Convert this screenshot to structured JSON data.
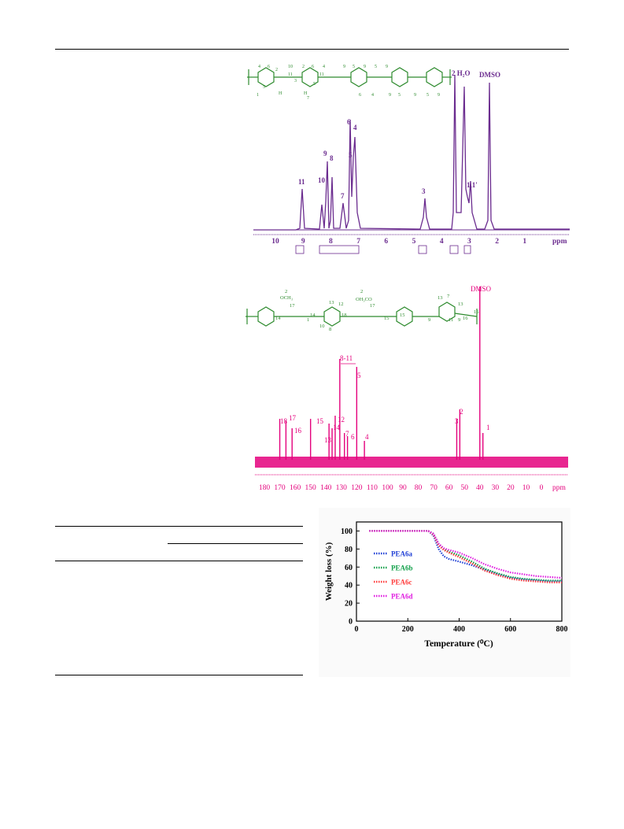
{
  "colors": {
    "hnmr": "#6b2c8f",
    "cnmr": "#e4007c",
    "structure": "#2e8b2e",
    "tga_series": [
      "#1f3fd6",
      "#12a04a",
      "#ff3b3b",
      "#e01ee0"
    ]
  },
  "hnmr": {
    "solvent_labels": [
      "2 H₂O",
      "DMSO"
    ],
    "peak_labels": [
      "11",
      "10",
      "9",
      "8",
      "7",
      "6",
      "5",
      "4",
      "3",
      "1,1′"
    ],
    "axis_ticks": [
      "10",
      "9",
      "8",
      "7",
      "6",
      "5",
      "4",
      "3",
      "2",
      "1"
    ],
    "axis_unit": "ppm",
    "structure_labels": [
      "4",
      "6",
      "5",
      "2",
      "10",
      "2",
      "6",
      "4",
      "9",
      "5",
      "9",
      "5",
      "9",
      "3",
      "5",
      "11",
      "11",
      "H",
      "H",
      "7",
      "1",
      "6",
      "4",
      "9",
      "5",
      "9",
      "5",
      "9"
    ]
  },
  "cnmr": {
    "solvent_label": "DMSO",
    "peak_labels": [
      "18",
      "17",
      "16",
      "15",
      "14",
      "13",
      "12",
      "8-11",
      "7",
      "6",
      "5",
      "4",
      "3",
      "2",
      "1"
    ],
    "axis_ticks": [
      "180",
      "170",
      "160",
      "150",
      "140",
      "130",
      "120",
      "110",
      "100",
      "90",
      "80",
      "70",
      "60",
      "50",
      "40",
      "30",
      "20",
      "10",
      "0"
    ],
    "axis_unit": "ppm",
    "structure_labels": [
      "OCH₃",
      "OH₃CO",
      "2",
      "2",
      "17",
      "12",
      "13",
      "17",
      "18",
      "13",
      "7",
      "13",
      "16",
      "15",
      "14",
      "10",
      "8",
      "1",
      "14",
      "15",
      "16",
      "9",
      "11",
      "9"
    ]
  },
  "tga": {
    "ylabel": "Weight loss (%)",
    "xlabel": "Temperature (⁰C)",
    "y_ticks": [
      "100",
      "80",
      "60",
      "40",
      "20",
      "0"
    ],
    "x_ticks": [
      "0",
      "200",
      "400",
      "600",
      "800"
    ],
    "legend": [
      "PEA6a",
      "PEA6b",
      "PEA6c",
      "PEA6d"
    ]
  },
  "chart_data": [
    {
      "type": "line",
      "title": "",
      "xlabel": "Temperature (⁰C)",
      "ylabel": "Weight loss (%)",
      "xlim": [
        0,
        800
      ],
      "ylim": [
        0,
        110
      ],
      "legend_position": "left",
      "series": [
        {
          "name": "PEA6a",
          "x": [
            50,
            100,
            200,
            280,
            300,
            320,
            340,
            360,
            400,
            450,
            500,
            550,
            600,
            650,
            700,
            750,
            800
          ],
          "y": [
            100,
            100,
            100,
            100,
            95,
            80,
            72,
            69,
            66,
            62,
            57,
            52,
            48,
            46,
            45,
            44,
            44
          ]
        },
        {
          "name": "PEA6b",
          "x": [
            50,
            100,
            200,
            280,
            300,
            320,
            340,
            360,
            400,
            450,
            500,
            550,
            600,
            650,
            700,
            750,
            800
          ],
          "y": [
            100,
            100,
            100,
            100,
            97,
            86,
            80,
            77,
            73,
            66,
            58,
            53,
            49,
            47,
            46,
            45,
            45
          ]
        },
        {
          "name": "PEA6c",
          "x": [
            50,
            100,
            200,
            280,
            300,
            320,
            340,
            360,
            400,
            450,
            500,
            550,
            600,
            650,
            700,
            750,
            800
          ],
          "y": [
            100,
            100,
            100,
            100,
            96,
            84,
            79,
            76,
            71,
            64,
            56,
            51,
            47,
            45,
            44,
            43,
            43
          ]
        },
        {
          "name": "PEA6d",
          "x": [
            50,
            100,
            200,
            280,
            300,
            320,
            340,
            360,
            400,
            450,
            500,
            550,
            600,
            650,
            700,
            750,
            800
          ],
          "y": [
            100,
            100,
            100,
            100,
            97,
            86,
            81,
            79,
            76,
            70,
            63,
            58,
            54,
            52,
            50,
            49,
            48
          ]
        }
      ]
    }
  ]
}
